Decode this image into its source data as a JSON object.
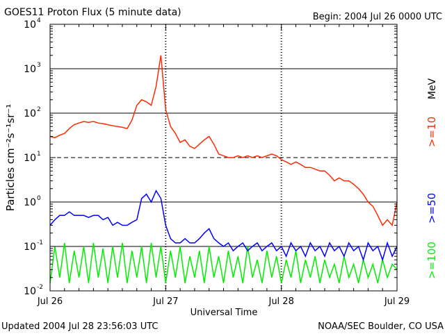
{
  "chart_data": {
    "type": "line",
    "title": "GOES11 Proton Flux (5 minute data)",
    "begin_label": "Begin: 2004 Jul 26 0000 UTC",
    "xlabel": "Universal Time",
    "ylabel": "Particles cm⁻²s⁻¹sr⁻¹",
    "units_label": "MeV",
    "updated": "Updated 2004 Jul 28 23:56:03 UTC",
    "source": "NOAA/SEC Boulder, CO USA",
    "y_scale": "log",
    "ylim": [
      0.01,
      10000
    ],
    "y_ticks": [
      {
        "exp": "-2"
      },
      {
        "exp": "-1"
      },
      {
        "exp": "0"
      },
      {
        "exp": "1"
      },
      {
        "exp": "2"
      },
      {
        "exp": "3"
      },
      {
        "exp": "4"
      }
    ],
    "x_unit": "hours since 2004 Jul 26 0000 UTC",
    "xlim": [
      0,
      72
    ],
    "x_ticks": [
      {
        "label": "Jul 26",
        "hour": 0
      },
      {
        "label": "Jul 27",
        "hour": 24
      },
      {
        "label": "Jul 28",
        "hour": 48
      },
      {
        "label": "Jul 29",
        "hour": 72
      }
    ],
    "series": [
      {
        "name": ">=10",
        "color": "#ff2a00",
        "values": [
          30,
          28,
          32,
          35,
          45,
          55,
          60,
          65,
          62,
          65,
          60,
          58,
          55,
          52,
          50,
          48,
          45,
          70,
          150,
          200,
          180,
          150,
          400,
          2000,
          120,
          50,
          35,
          22,
          25,
          18,
          16,
          20,
          25,
          30,
          20,
          12,
          11,
          10,
          10,
          11,
          10,
          11,
          10,
          11,
          10,
          11,
          12,
          11,
          9,
          8,
          7,
          8,
          7,
          6,
          6,
          5.5,
          5,
          5,
          4,
          3,
          3.5,
          3,
          3,
          2.5,
          2,
          1.5,
          1,
          0.8,
          0.5,
          0.3,
          0.4,
          0.3,
          1
        ]
      },
      {
        "name": ">=50",
        "color": "#0000ff",
        "values": [
          0.3,
          0.4,
          0.5,
          0.5,
          0.6,
          0.5,
          0.5,
          0.5,
          0.45,
          0.5,
          0.5,
          0.4,
          0.45,
          0.3,
          0.35,
          0.3,
          0.3,
          0.35,
          0.4,
          1.2,
          1.5,
          1.0,
          1.8,
          1.2,
          0.3,
          0.15,
          0.12,
          0.12,
          0.15,
          0.12,
          0.12,
          0.15,
          0.2,
          0.25,
          0.15,
          0.12,
          0.1,
          0.12,
          0.08,
          0.1,
          0.12,
          0.08,
          0.1,
          0.12,
          0.08,
          0.1,
          0.12,
          0.08,
          0.1,
          0.06,
          0.12,
          0.08,
          0.1,
          0.06,
          0.12,
          0.08,
          0.1,
          0.06,
          0.12,
          0.08,
          0.1,
          0.06,
          0.12,
          0.08,
          0.1,
          0.05,
          0.12,
          0.08,
          0.1,
          0.05,
          0.12,
          0.06,
          0.1
        ]
      },
      {
        "name": ">=100",
        "color": "#00ee00",
        "values": [
          0.015,
          0.1,
          0.02,
          0.12,
          0.015,
          0.08,
          0.02,
          0.1,
          0.015,
          0.12,
          0.02,
          0.09,
          0.015,
          0.1,
          0.02,
          0.12,
          0.015,
          0.08,
          0.02,
          0.1,
          0.015,
          0.12,
          0.02,
          0.1,
          0.015,
          0.08,
          0.02,
          0.1,
          0.015,
          0.06,
          0.02,
          0.08,
          0.015,
          0.1,
          0.02,
          0.06,
          0.015,
          0.08,
          0.02,
          0.06,
          0.015,
          0.1,
          0.02,
          0.05,
          0.015,
          0.08,
          0.02,
          0.06,
          0.015,
          0.05,
          0.02,
          0.08,
          0.015,
          0.05,
          0.02,
          0.06,
          0.015,
          0.05,
          0.02,
          0.04,
          0.015,
          0.06,
          0.02,
          0.04,
          0.015,
          0.05,
          0.02,
          0.04,
          0.015,
          0.05,
          0.02,
          0.04,
          0.03
        ]
      }
    ]
  }
}
